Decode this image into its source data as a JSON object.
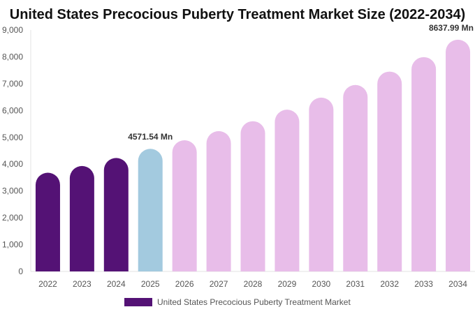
{
  "chart_data": {
    "type": "bar",
    "title": "United States Precocious Puberty Treatment Market Size (2022-2034)",
    "xlabel": "",
    "ylabel": "",
    "categories": [
      "2022",
      "2023",
      "2024",
      "2025",
      "2026",
      "2027",
      "2028",
      "2029",
      "2030",
      "2031",
      "2032",
      "2033",
      "2034"
    ],
    "series": [
      {
        "name": "United States Precocious Puberty Treatment Market",
        "values": [
          3680,
          3930,
          4230,
          4571.54,
          4890,
          5230,
          5600,
          6030,
          6480,
          6950,
          7450,
          7990,
          8637.99
        ]
      }
    ],
    "ylim": [
      0,
      9000
    ],
    "y_ticks": [
      "0",
      "1,000",
      "2,000",
      "3,000",
      "4,000",
      "5,000",
      "6,000",
      "7,000",
      "8,000",
      "9,000"
    ],
    "y_tick_values": [
      0,
      1000,
      2000,
      3000,
      4000,
      5000,
      6000,
      7000,
      8000,
      9000
    ],
    "bar_colors": [
      "#541275",
      "#541275",
      "#541275",
      "#a3cadf",
      "#e8bde9",
      "#e8bde9",
      "#e8bde9",
      "#e8bde9",
      "#e8bde9",
      "#e8bde9",
      "#e8bde9",
      "#e8bde9",
      "#e8bde9"
    ],
    "data_labels": [
      {
        "index": 3,
        "text": "4571.54 Mn"
      },
      {
        "index": 12,
        "text": "8637.99 Mn"
      }
    ],
    "legend": {
      "position": "bottom-center",
      "label": "United States Precocious Puberty Treatment Market",
      "color": "#541275"
    },
    "grid": false
  }
}
